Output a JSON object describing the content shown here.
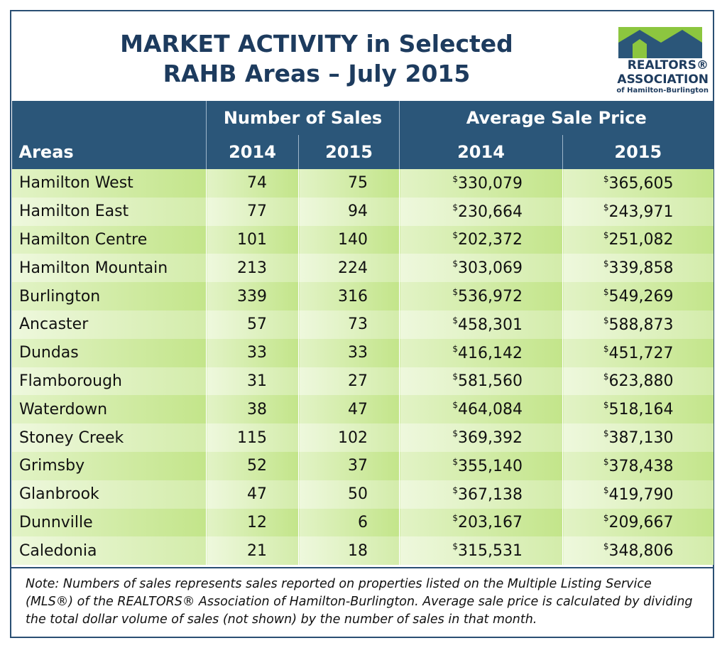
{
  "header": {
    "title_line1": "MARKET ACTIVITY in Selected",
    "title_line2": "RAHB Areas – July 2015"
  },
  "logo": {
    "line1": "REALTORS®",
    "line2": "ASSOCIATION",
    "line3": "of Hamilton-Burlington"
  },
  "table": {
    "group_headers": [
      "Number of Sales",
      "Average Sale Price"
    ],
    "columns": [
      "Areas",
      "2014",
      "2015",
      "2014",
      "2015"
    ],
    "rows": [
      [
        "Hamilton West",
        74,
        75,
        "$330,079",
        "$365,605"
      ],
      [
        "Hamilton East",
        77,
        94,
        "$230,664",
        "$243,971"
      ],
      [
        "Hamilton Centre",
        101,
        140,
        "$202,372",
        "$251,082"
      ],
      [
        "Hamilton Mountain",
        213,
        224,
        "$303,069",
        "$339,858"
      ],
      [
        "Burlington",
        339,
        316,
        "$536,972",
        "$549,269"
      ],
      [
        "Ancaster",
        57,
        73,
        "$458,301",
        "$588,873"
      ],
      [
        "Dundas",
        33,
        33,
        "$416,142",
        "$451,727"
      ],
      [
        "Flamborough",
        31,
        27,
        "$581,560",
        "$623,880"
      ],
      [
        "Waterdown",
        38,
        47,
        "$464,084",
        "$518,164"
      ],
      [
        "Stoney Creek",
        115,
        102,
        "$369,392",
        "$387,130"
      ],
      [
        "Grimsby",
        52,
        37,
        "$355,140",
        "$378,438"
      ],
      [
        "Glanbrook",
        47,
        50,
        "$367,138",
        "$419,790"
      ],
      [
        "Dunnville",
        12,
        6,
        "$203,167",
        "$209,667"
      ],
      [
        "Caledonia",
        21,
        18,
        "$315,531",
        "$348,806"
      ]
    ]
  },
  "note": "Note:  Numbers of sales represents sales reported on properties listed on the Multiple Listing Service (MLS®) of the REALTORS® Association of Hamilton-Burlington.  Average sale price is calculated by dividing the total dollar volume of sales (not shown) by the number of sales in that month."
}
